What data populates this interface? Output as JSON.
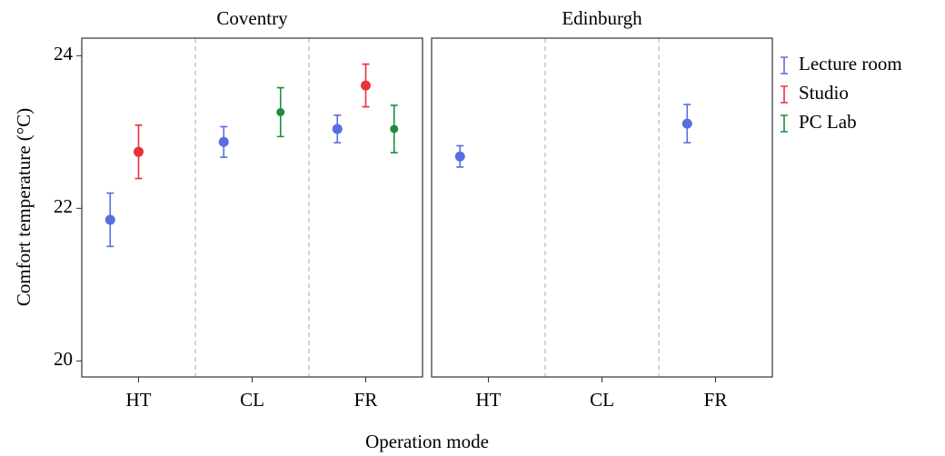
{
  "chart_data": {
    "type": "errorbar",
    "ylabel": "Comfort temperature (°C)",
    "xlabel": "Operation mode",
    "panels": [
      "Coventry",
      "Edinburgh"
    ],
    "categories": [
      "HT",
      "CL",
      "FR"
    ],
    "ylim": [
      19.79,
      24.23
    ],
    "yticks": [
      20,
      22,
      24
    ],
    "legend": "right",
    "series": [
      {
        "name": "Lecture room",
        "color": "#5a6ee0",
        "values": [
          [
            21.85,
            22.87,
            23.04
          ],
          [
            22.68,
            null,
            23.11
          ]
        ],
        "errors": [
          [
            0.35,
            0.2,
            0.18
          ],
          [
            0.14,
            null,
            0.25
          ]
        ]
      },
      {
        "name": "Studio",
        "color": "#e8323c",
        "values": [
          [
            22.74,
            null,
            23.61
          ],
          [
            null,
            null,
            null
          ]
        ],
        "errors": [
          [
            0.35,
            null,
            0.28
          ],
          [
            null,
            null,
            null
          ]
        ]
      },
      {
        "name": "PC Lab",
        "color": "#1e8c3c",
        "values": [
          [
            null,
            23.26,
            23.04
          ],
          [
            null,
            null,
            null
          ]
        ],
        "errors": [
          [
            null,
            0.32,
            0.31
          ],
          [
            null,
            null,
            null
          ]
        ]
      }
    ]
  }
}
